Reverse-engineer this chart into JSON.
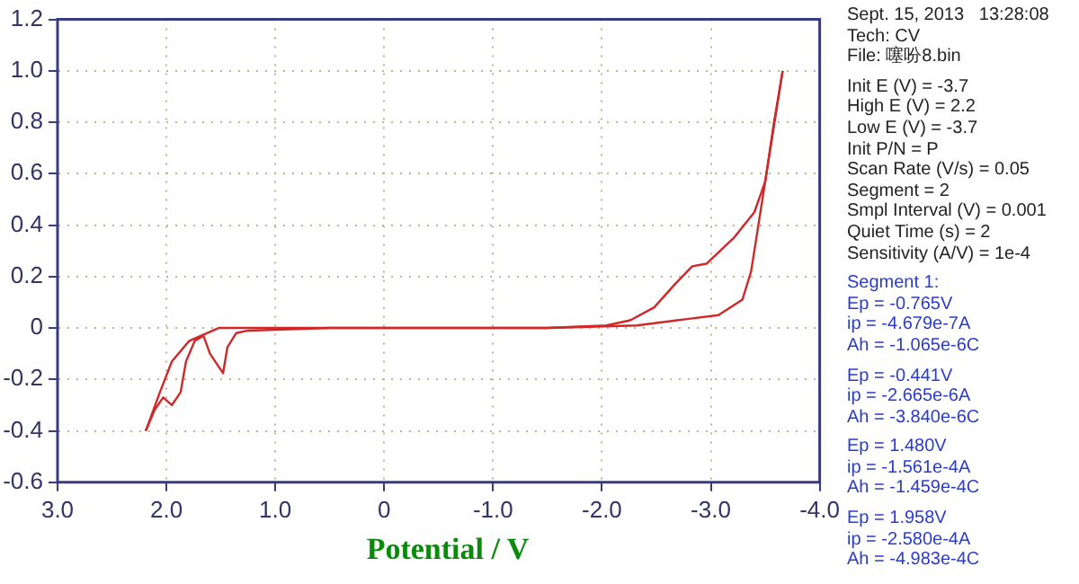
{
  "chart_data": {
    "type": "line",
    "xlabel": "Potential / V",
    "xlim": [
      3.0,
      -4.0
    ],
    "xticks": [
      {
        "value": 3,
        "label": "3.0"
      },
      {
        "value": 2,
        "label": "2.0"
      },
      {
        "value": 1,
        "label": "1.0"
      },
      0,
      {
        "value": -1,
        "label": "-1.0"
      },
      {
        "value": -2,
        "label": "-2.0"
      },
      {
        "value": -3,
        "label": "-3.0"
      },
      {
        "value": -4,
        "label": "-4.0"
      }
    ],
    "ylim": [
      -0.6,
      1.2
    ],
    "yticks": [
      {
        "value": -0.6,
        "label": "-0.6"
      },
      {
        "value": -0.4,
        "label": "-0.4"
      },
      {
        "value": -0.2,
        "label": "-0.2"
      },
      0,
      {
        "value": 0.2,
        "label": "0.2"
      },
      {
        "value": 0.4,
        "label": "0.4"
      },
      {
        "value": 0.6,
        "label": "0.6"
      },
      {
        "value": 0.8,
        "label": "0.8"
      },
      {
        "value": 1,
        "label": "1.0"
      },
      {
        "value": 1.2,
        "label": "1.2"
      }
    ],
    "grid": true,
    "marker": "none",
    "line_style": "solid",
    "series": [
      {
        "color": "#d02828",
        "x": [
          -3.66,
          -3.58,
          -3.5,
          -3.37,
          -3.29,
          -3.07,
          -2.69,
          -2.32,
          -1.5,
          -0.5,
          0.5,
          1.25,
          1.36,
          1.44,
          1.48,
          1.6,
          1.66,
          1.74,
          1.82,
          1.87,
          1.95,
          2.03,
          2.11,
          2.19
        ],
        "values": [
          1.0,
          0.8,
          0.57,
          0.22,
          0.11,
          0.05,
          0.03,
          0.01,
          0.0,
          0.0,
          0.0,
          -0.01,
          -0.02,
          -0.075,
          -0.176,
          -0.1,
          -0.03,
          -0.05,
          -0.13,
          -0.25,
          -0.3,
          -0.27,
          -0.32,
          -0.4
        ]
      },
      {
        "color": "#d02828",
        "x": [
          2.19,
          2.06,
          1.95,
          1.79,
          1.52,
          1.25,
          0.5,
          -0.5,
          -1.5,
          -2.04,
          -2.26,
          -2.48,
          -2.67,
          -2.83,
          -2.96,
          -3.21,
          -3.4,
          -3.5,
          -3.66
        ],
        "values": [
          -0.4,
          -0.25,
          -0.13,
          -0.05,
          0.0,
          0.0,
          0.0,
          0.0,
          0.0,
          0.01,
          0.03,
          0.08,
          0.17,
          0.24,
          0.25,
          0.35,
          0.45,
          0.57,
          1.0
        ]
      }
    ],
    "annotations": [
      "Sept. 15, 2013   13:28:08",
      "Tech: CV",
      "File: 噻吩8.bin",
      "Init E (V) = -3.7",
      "High E (V) = 2.2",
      "Low E (V) = -3.7",
      "Init P/N = P",
      "Scan Rate (V/s) = 0.05",
      "Segment = 2",
      "Smpl Interval (V) = 0.001",
      "Quiet Time (s) = 2",
      "Sensitivity (A/V) = 1e-4",
      "Segment 1:",
      "Ep = -0.765V",
      "ip = -4.679e-7A",
      "Ah = -1.065e-6C",
      "Ep = -0.441V",
      "ip = -2.665e-6A",
      "Ah = -3.840e-6C",
      "Ep = 1.480V",
      "ip = -1.561e-4A",
      "Ah = -1.459e-4C",
      "Ep = 1.958V",
      "ip = -2.580e-4A",
      "Ah = -4.983e-4C"
    ]
  }
}
